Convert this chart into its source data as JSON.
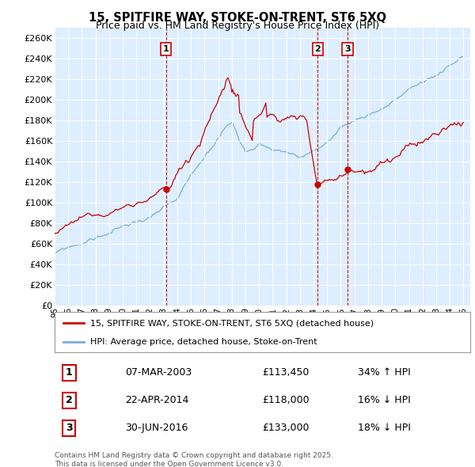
{
  "title": "15, SPITFIRE WAY, STOKE-ON-TRENT, ST6 5XQ",
  "subtitle": "Price paid vs. HM Land Registry's House Price Index (HPI)",
  "ylim": [
    0,
    270000
  ],
  "yticks": [
    0,
    20000,
    40000,
    60000,
    80000,
    100000,
    120000,
    140000,
    160000,
    180000,
    200000,
    220000,
    240000,
    260000
  ],
  "sale_color": "#cc0000",
  "hpi_color": "#7ab0d4",
  "vline_color": "#cc0000",
  "plot_bg_color": "#ddeeff",
  "legend1": "15, SPITFIRE WAY, STOKE-ON-TRENT, ST6 5XQ (detached house)",
  "legend2": "HPI: Average price, detached house, Stoke-on-Trent",
  "transactions": [
    {
      "label": "1",
      "date": "07-MAR-2003",
      "price": 113450,
      "pct": "34%",
      "dir": "↑",
      "x_year": 2003.18
    },
    {
      "label": "2",
      "date": "22-APR-2014",
      "price": 118000,
      "pct": "16%",
      "dir": "↓",
      "x_year": 2014.31
    },
    {
      "label": "3",
      "date": "30-JUN-2016",
      "price": 133000,
      "pct": "18%",
      "dir": "↓",
      "x_year": 2016.49
    }
  ],
  "footnote": "Contains HM Land Registry data © Crown copyright and database right 2025.\nThis data is licensed under the Open Government Licence v3.0.",
  "xlim_start": 1995.0,
  "xlim_end": 2025.5
}
